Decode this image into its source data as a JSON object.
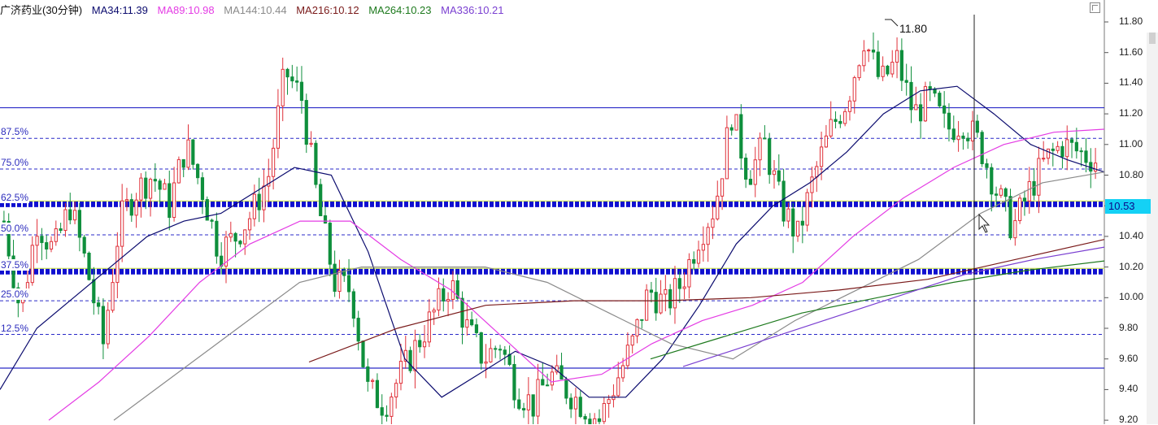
{
  "header": {
    "title": "广济药业(30分钟)",
    "ma": [
      {
        "label": "MA34:11.39",
        "color": "#0b0b6e"
      },
      {
        "label": "MA89:10.98",
        "color": "#e43ce4"
      },
      {
        "label": "MA144:10.44",
        "color": "#8a8a8a"
      },
      {
        "label": "MA216:10.12",
        "color": "#7a1a1a"
      },
      {
        "label": "MA264:10.23",
        "color": "#1e7a1e"
      },
      {
        "label": "MA336:10.21",
        "color": "#7a3fd1"
      }
    ]
  },
  "colors": {
    "up": "#e0313a",
    "down": "#0f8f3c",
    "guide": "#2a2ac8",
    "price_tag": "#14d1f5"
  },
  "chart_data": {
    "type": "candlestick",
    "title": "广济药业(30分钟)",
    "y_ticks": [
      "11.80",
      "11.60",
      "11.40",
      "11.20",
      "11.00",
      "10.80",
      "10.60",
      "10.40",
      "10.20",
      "10.00",
      "9.80",
      "9.60",
      "9.40",
      "9.20"
    ],
    "ylim": [
      9.2,
      11.88
    ],
    "current_price": "10.53",
    "high_label": "11.80",
    "fib_levels": [
      {
        "label": "87.5%",
        "value": 11.04
      },
      {
        "label": "75.0%",
        "value": 10.84
      },
      {
        "label": "62.5%",
        "value": 10.61
      },
      {
        "label": "50.0%",
        "value": 10.41
      },
      {
        "label": "37.5%",
        "value": 10.17
      },
      {
        "label": "25.0%",
        "value": 9.98
      },
      {
        "label": "12.5%",
        "value": 9.76
      }
    ],
    "boundary_levels": [
      11.24,
      9.54
    ],
    "price_path": [
      10.5,
      9.9,
      10.5,
      10.3,
      10.6,
      10.2,
      9.7,
      10.5,
      10.7,
      10.8,
      10.6,
      11.0,
      10.7,
      10.3,
      10.4,
      10.55,
      10.8,
      11.48,
      11.3,
      10.6,
      10.1,
      10.05,
      9.4,
      9.3,
      9.5,
      9.7,
      9.9,
      10.1,
      9.8,
      9.6,
      9.7,
      9.4,
      9.3,
      9.5,
      9.4,
      9.3,
      9.2,
      9.45,
      9.7,
      10.05,
      9.95,
      10.1,
      10.4,
      10.6,
      11.2,
      10.8,
      11.0,
      10.6,
      10.4,
      10.8,
      11.1,
      11.3,
      11.7,
      11.4,
      11.55,
      11.2,
      11.3,
      11.1,
      11.15,
      11.0,
      10.7,
      10.45,
      10.7,
      10.9,
      11.0,
      10.95,
      10.9
    ],
    "ma_series": [
      {
        "name": "MA34",
        "color": "#0b0b6e",
        "values": [
          9.4,
          9.8,
          10.0,
          10.2,
          10.4,
          10.5,
          10.55,
          10.7,
          10.85,
          10.8,
          10.3,
          9.6,
          9.35,
          9.5,
          9.65,
          9.55,
          9.35,
          9.35,
          9.6,
          9.95,
          10.35,
          10.6,
          10.75,
          10.95,
          11.2,
          11.35,
          11.38,
          11.2,
          11.0,
          10.9,
          10.82
        ]
      },
      {
        "name": "MA89",
        "color": "#e43ce4",
        "values": [
          9.2,
          9.45,
          9.75,
          10.1,
          10.35,
          10.5,
          10.5,
          10.25,
          10.05,
          9.75,
          9.45,
          9.5,
          9.7,
          9.85,
          9.95,
          10.1,
          10.4,
          10.65,
          10.85,
          11.0,
          11.08,
          11.1
        ]
      },
      {
        "name": "MA144",
        "color": "#8a8a8a",
        "values": [
          9.2,
          9.5,
          9.8,
          10.1,
          10.2,
          10.2,
          10.2,
          10.1,
          9.9,
          9.7,
          9.6,
          9.85,
          10.05,
          10.25,
          10.55,
          10.75,
          10.82
        ]
      },
      {
        "name": "MA216",
        "color": "#7a1a1a",
        "values": [
          9.58,
          9.8,
          9.95,
          9.98,
          9.98,
          10.0,
          10.05,
          10.12,
          10.25,
          10.38
        ]
      },
      {
        "name": "MA264",
        "color": "#1e7a1e",
        "values": [
          9.6,
          9.75,
          9.9,
          10.0,
          10.1,
          10.18,
          10.24
        ]
      },
      {
        "name": "MA336",
        "color": "#7a3fd1",
        "values": [
          9.55,
          9.7,
          9.85,
          10.0,
          10.15,
          10.25,
          10.33
        ]
      }
    ]
  }
}
